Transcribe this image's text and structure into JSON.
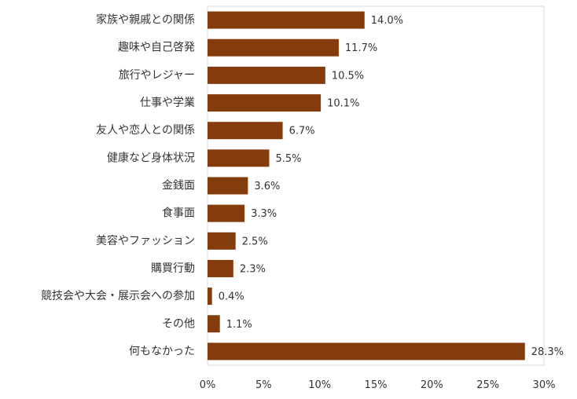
{
  "chart_data": {
    "type": "bar",
    "orientation": "horizontal",
    "categories": [
      "家族や親戚との関係",
      "趣味や自己啓発",
      "旅行やレジャー",
      "仕事や学業",
      "友人や恋人との関係",
      "健康など身体状況",
      "金銭面",
      "食事面",
      "美容やファッション",
      "購買行動",
      "競技会や大会・展示会への参加",
      "その他",
      "何もなかった"
    ],
    "values": [
      14.0,
      11.7,
      10.5,
      10.1,
      6.7,
      5.5,
      3.6,
      3.3,
      2.5,
      2.3,
      0.4,
      1.1,
      28.3
    ],
    "value_labels": [
      "14.0%",
      "11.7%",
      "10.5%",
      "10.1%",
      "6.7%",
      "5.5%",
      "3.6%",
      "3.3%",
      "2.5%",
      "2.3%",
      "0.4%",
      "1.1%",
      "28.3%"
    ],
    "xlim": [
      0,
      30
    ],
    "x_ticks": [
      0,
      5,
      10,
      15,
      20,
      25,
      30
    ],
    "x_tick_labels": [
      "0%",
      "5%",
      "10%",
      "15%",
      "20%",
      "25%",
      "30%"
    ],
    "bar_color": "#843C0C",
    "grid": false,
    "legend": false
  }
}
